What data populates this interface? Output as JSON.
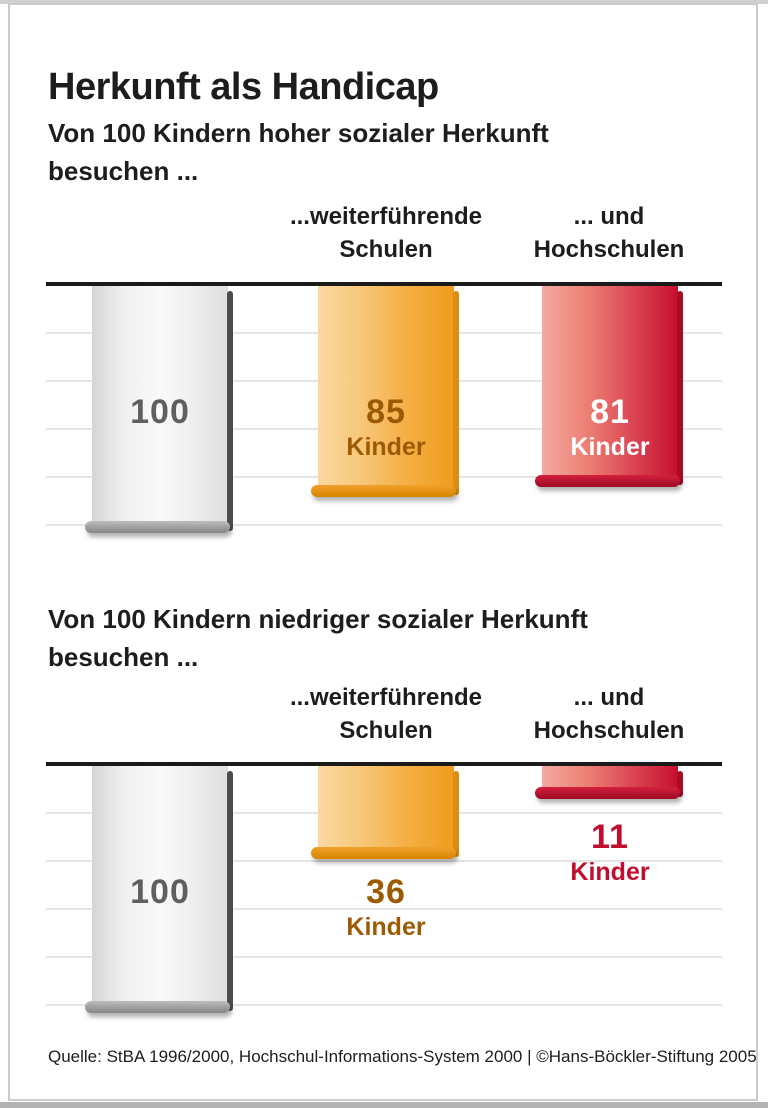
{
  "title": "Herkunft als Handicap",
  "charts": [
    {
      "subtitle": [
        "Von 100 Kindern hoher sozialer Herkunft",
        "besuchen ..."
      ],
      "columns": [
        [
          "...weiterführende",
          "Schulen"
        ],
        [
          "... und",
          "Hochschulen"
        ]
      ],
      "bars": [
        {
          "display": "100",
          "unit": ""
        },
        {
          "display": "85",
          "unit": "Kinder"
        },
        {
          "display": "81",
          "unit": "Kinder"
        }
      ]
    },
    {
      "subtitle": [
        "Von 100 Kindern niedriger sozialer Herkunft",
        "besuchen ..."
      ],
      "columns": [
        [
          "...weiterführende",
          "Schulen"
        ],
        [
          "... und",
          "Hochschulen"
        ]
      ],
      "bars": [
        {
          "display": "100",
          "unit": ""
        },
        {
          "display": "36",
          "unit": "Kinder"
        },
        {
          "display": "11",
          "unit": "Kinder"
        }
      ]
    }
  ],
  "source": "Quelle: StBA 1996/2000, Hochschul-Informations-System 2000 | ©Hans-Böckler-Stiftung 2005",
  "colors": {
    "bar_gray": "#ededed",
    "bar_orange": "#f09c1c",
    "bar_red": "#c60f2d",
    "label_gray": "#5f5f5f",
    "label_orange": "#9c5a03",
    "label_red": "#c10e2e",
    "label_on_red_bar": "#ffffff",
    "axis_line": "#1a1a1a",
    "gridline": "#e5e5e5"
  },
  "chart_data": [
    {
      "type": "bar",
      "title": "Von 100 Kindern hoher sozialer Herkunft besuchen ...",
      "categories": [
        "",
        "...weiterführende Schulen",
        "... und Hochschulen"
      ],
      "values": [
        100,
        85,
        81
      ],
      "bar_labels": [
        "100",
        "85 Kinder",
        "81 Kinder"
      ],
      "bar_colors": [
        "#ededed",
        "#f09c1c",
        "#c60f2d"
      ],
      "unit": "Kinder",
      "ylim": [
        0,
        100
      ],
      "orientation": "bars hang downward from top baseline",
      "grid": true,
      "gridline_interval": 20
    },
    {
      "type": "bar",
      "title": "Von 100 Kindern niedriger sozialer Herkunft besuchen ...",
      "categories": [
        "",
        "...weiterführende Schulen",
        "... und Hochschulen"
      ],
      "values": [
        100,
        36,
        11
      ],
      "bar_labels": [
        "100",
        "36 Kinder",
        "11 Kinder"
      ],
      "bar_colors": [
        "#ededed",
        "#f09c1c",
        "#c60f2d"
      ],
      "unit": "Kinder",
      "ylim": [
        0,
        100
      ],
      "orientation": "bars hang downward from top baseline",
      "grid": true,
      "gridline_interval": 20
    }
  ]
}
